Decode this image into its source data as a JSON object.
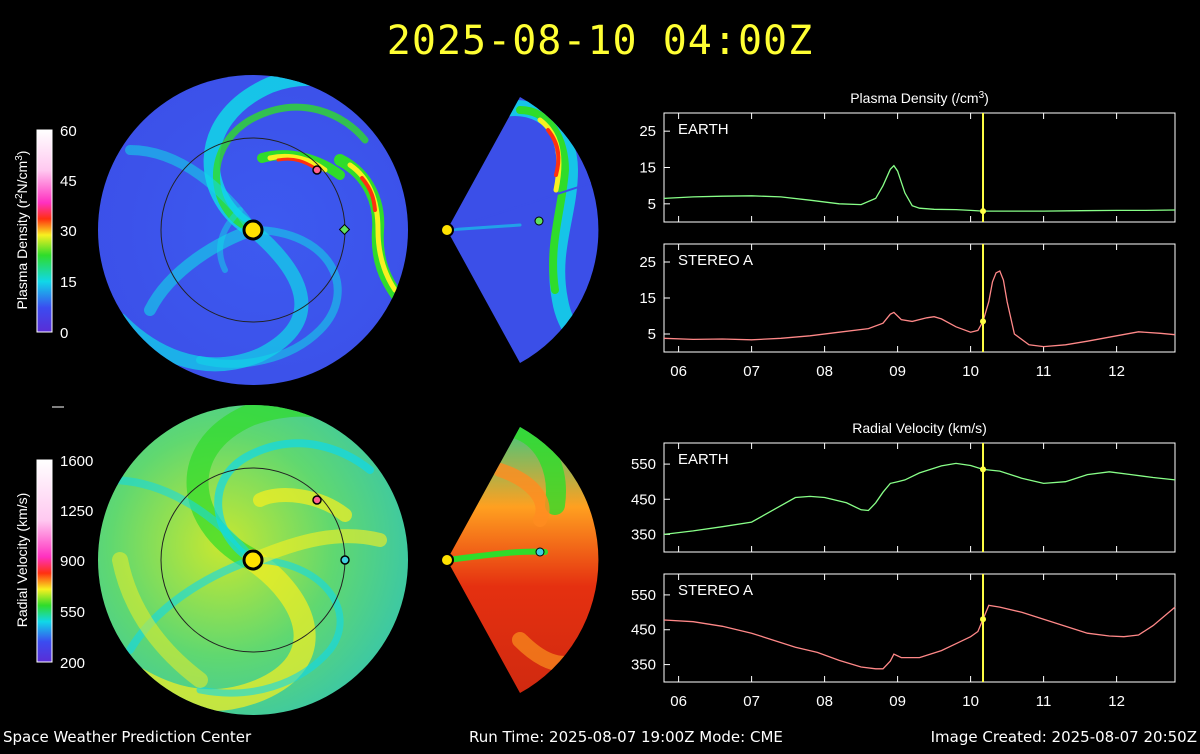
{
  "header": {
    "timestamp": "2025-08-10 04:00Z"
  },
  "footer": {
    "org": "Space Weather Prediction Center",
    "run_time": "Run Time: 2025-08-07 19:00Z  Mode: CME",
    "image_created": "Image Created: 2025-08-07 20:50Z"
  },
  "colors": {
    "earth_line": "#88ff88",
    "stereo_line": "#ff8888",
    "marker": "#ffff44",
    "title": "#ffff33"
  },
  "colorbars": [
    {
      "label": "Plasma Density (r²N/cm³)",
      "label_base": "Plasma Density (r",
      "label_sup1": "2",
      "label_mid": "N/cm",
      "label_sup2": "3",
      "label_end": ")",
      "ticks": [
        "60",
        "45",
        "30",
        "15",
        "0"
      ]
    },
    {
      "label": "Radial Velocity (km/s)",
      "ticks": [
        "1600",
        "1250",
        "900",
        "550",
        "200"
      ]
    }
  ],
  "chart_data": [
    {
      "type": "line",
      "title": "Plasma Density (/cm3)",
      "title_base": "Plasma Density (/cm",
      "title_sup": "3",
      "title_end": ")",
      "x_ticks": [
        "06",
        "07",
        "08",
        "09",
        "10",
        "11",
        "12"
      ],
      "xlim": [
        5.8,
        12.8
      ],
      "current_time": 10.17,
      "panels": [
        {
          "name": "EARTH",
          "ylim": [
            0,
            30
          ],
          "y_ticks": [
            25,
            15,
            5
          ],
          "x": [
            5.8,
            6.2,
            6.6,
            7.0,
            7.4,
            7.8,
            8.2,
            8.5,
            8.7,
            8.8,
            8.9,
            8.95,
            9.0,
            9.1,
            9.2,
            9.3,
            9.5,
            9.8,
            10.0,
            10.17,
            10.5,
            11.0,
            11.5,
            12.0,
            12.4,
            12.8
          ],
          "values": [
            6.5,
            6.9,
            7.1,
            7.2,
            6.9,
            6.0,
            5.0,
            4.8,
            6.5,
            10.0,
            14.5,
            15.5,
            14.0,
            8.0,
            4.5,
            3.8,
            3.5,
            3.4,
            3.2,
            3.0,
            3.0,
            3.0,
            3.1,
            3.2,
            3.2,
            3.3
          ]
        },
        {
          "name": "STEREO A",
          "ylim": [
            0,
            30
          ],
          "y_ticks": [
            25,
            15,
            5
          ],
          "x": [
            5.8,
            6.2,
            6.6,
            7.0,
            7.4,
            7.8,
            8.2,
            8.6,
            8.8,
            8.9,
            8.95,
            9.05,
            9.2,
            9.4,
            9.5,
            9.6,
            9.8,
            10.0,
            10.1,
            10.17,
            10.25,
            10.3,
            10.35,
            10.4,
            10.45,
            10.5,
            10.6,
            10.8,
            11.0,
            11.3,
            11.6,
            12.0,
            12.3,
            12.6,
            12.8
          ],
          "values": [
            3.8,
            3.5,
            3.6,
            3.4,
            3.8,
            4.5,
            5.5,
            6.5,
            8.0,
            10.5,
            11.0,
            9.0,
            8.5,
            9.5,
            9.8,
            9.2,
            7.0,
            5.5,
            6.0,
            8.5,
            14.0,
            19.5,
            22.0,
            22.5,
            20.0,
            14.0,
            5.0,
            2.0,
            1.5,
            2.0,
            3.0,
            4.5,
            5.6,
            5.2,
            4.8
          ]
        }
      ]
    },
    {
      "type": "line",
      "title": "Radial Velocity (km/s)",
      "x_ticks": [
        "06",
        "07",
        "08",
        "09",
        "10",
        "11",
        "12"
      ],
      "xlim": [
        5.8,
        12.8
      ],
      "current_time": 10.17,
      "panels": [
        {
          "name": "EARTH",
          "ylim": [
            300,
            610
          ],
          "y_ticks": [
            550,
            450,
            350
          ],
          "x": [
            5.8,
            6.2,
            6.6,
            7.0,
            7.3,
            7.6,
            7.8,
            8.0,
            8.3,
            8.5,
            8.6,
            8.7,
            8.8,
            8.9,
            9.0,
            9.1,
            9.3,
            9.6,
            9.8,
            10.0,
            10.17,
            10.4,
            10.7,
            11.0,
            11.3,
            11.6,
            11.9,
            12.2,
            12.5,
            12.8
          ],
          "values": [
            350,
            360,
            372,
            385,
            420,
            455,
            458,
            455,
            440,
            420,
            418,
            440,
            470,
            495,
            500,
            505,
            525,
            545,
            552,
            546,
            535,
            530,
            510,
            495,
            500,
            520,
            528,
            520,
            512,
            505
          ]
        },
        {
          "name": "STEREO A",
          "ylim": [
            300,
            610
          ],
          "y_ticks": [
            550,
            450,
            350
          ],
          "x": [
            5.8,
            6.2,
            6.6,
            7.0,
            7.3,
            7.6,
            7.9,
            8.2,
            8.5,
            8.7,
            8.8,
            8.9,
            8.95,
            9.05,
            9.3,
            9.6,
            9.8,
            10.0,
            10.1,
            10.17,
            10.25,
            10.4,
            10.7,
            11.0,
            11.3,
            11.6,
            11.9,
            12.1,
            12.3,
            12.5,
            12.8
          ],
          "values": [
            478,
            473,
            460,
            440,
            420,
            400,
            385,
            362,
            343,
            338,
            338,
            360,
            380,
            370,
            370,
            390,
            410,
            430,
            445,
            480,
            520,
            515,
            500,
            480,
            460,
            440,
            432,
            430,
            435,
            462,
            515
          ]
        }
      ]
    }
  ]
}
